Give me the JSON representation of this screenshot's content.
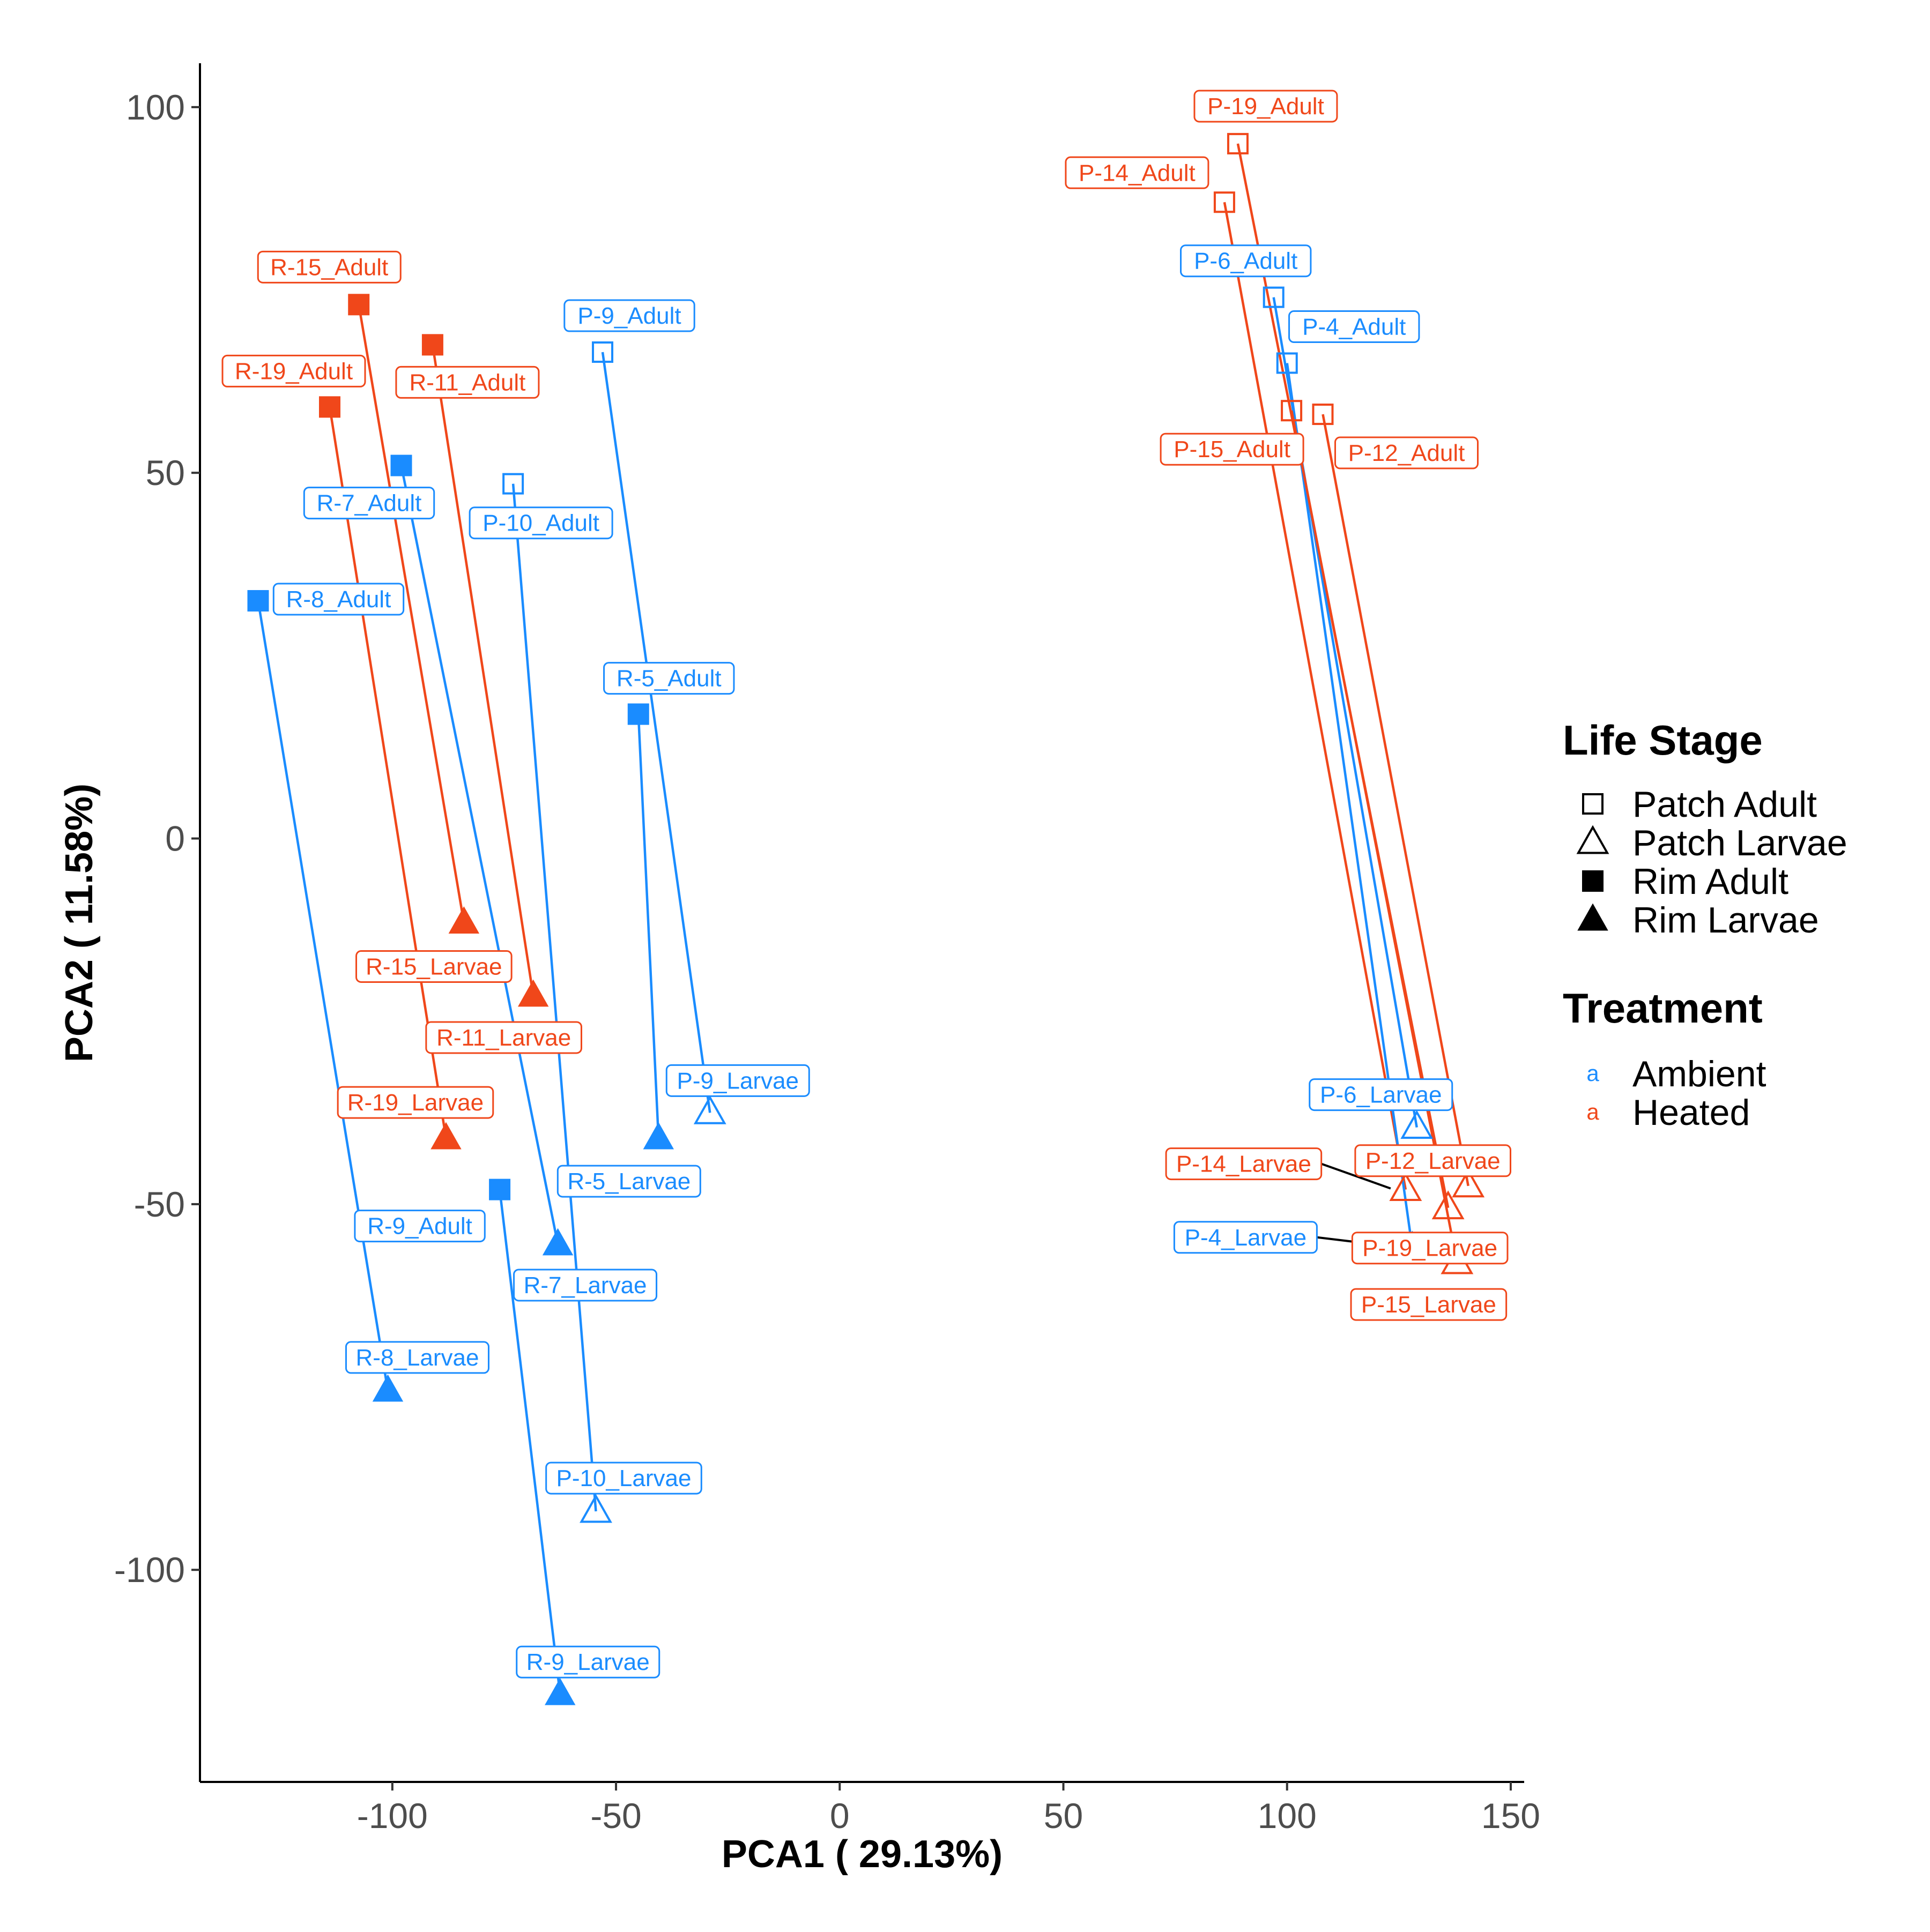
{
  "chart_data": {
    "type": "scatter",
    "xlabel": "PCA1 ( 29.13%)",
    "ylabel": "PCA2 ( 11.58%)",
    "xlim": [
      -143,
      153
    ],
    "ylim": [
      -129,
      106
    ],
    "x_ticks": [
      -100,
      -50,
      0,
      50,
      100,
      150
    ],
    "y_ticks": [
      100,
      50,
      0,
      -50,
      -100
    ],
    "x_tick_labels": [
      "-100",
      "-50",
      "0",
      "50",
      "100",
      "150"
    ],
    "y_tick_labels": [
      "100",
      "50",
      "0",
      "-50",
      "-100"
    ],
    "grid": false,
    "colors": {
      "Ambient": "#1a8cff",
      "Heated": "#f0471a",
      "ink": "#000000"
    },
    "legend": {
      "placement": "right",
      "life_stage_title": "Life Stage",
      "life_stage_items": [
        {
          "label": "Patch Adult",
          "shape": "square",
          "filled": false
        },
        {
          "label": "Patch Larvae",
          "shape": "triangle",
          "filled": false
        },
        {
          "label": "Rim Adult",
          "shape": "square",
          "filled": true
        },
        {
          "label": "Rim Larvae",
          "shape": "triangle",
          "filled": true
        }
      ],
      "treatment_title": "Treatment",
      "treatment_key_glyph": "a",
      "treatment_items": [
        {
          "label": "Ambient",
          "color": "#1a8cff"
        },
        {
          "label": "Heated",
          "color": "#f0471a"
        }
      ]
    },
    "points": [
      {
        "label": "R-15_Adult",
        "x": -107.5,
        "y": 73,
        "group": "Rim Adult",
        "treatment": "Heated"
      },
      {
        "label": "R-19_Adult",
        "x": -114,
        "y": 59,
        "group": "Rim Adult",
        "treatment": "Heated"
      },
      {
        "label": "R-11_Adult",
        "x": -91,
        "y": 67.5,
        "group": "Rim Adult",
        "treatment": "Heated"
      },
      {
        "label": "R-7_Adult",
        "x": -98,
        "y": 51,
        "group": "Rim Adult",
        "treatment": "Ambient"
      },
      {
        "label": "R-8_Adult",
        "x": -130,
        "y": 32.5,
        "group": "Rim Adult",
        "treatment": "Ambient"
      },
      {
        "label": "R-5_Adult",
        "x": -45,
        "y": 17,
        "group": "Rim Adult",
        "treatment": "Ambient"
      },
      {
        "label": "R-9_Adult",
        "x": -76,
        "y": -48,
        "group": "Rim Adult",
        "treatment": "Ambient"
      },
      {
        "label": "P-9_Adult",
        "x": -53,
        "y": 66.5,
        "group": "Patch Adult",
        "treatment": "Ambient"
      },
      {
        "label": "P-10_Adult",
        "x": -73,
        "y": 48.5,
        "group": "Patch Adult",
        "treatment": "Ambient"
      },
      {
        "label": "R-15_Larvae",
        "x": -84,
        "y": -11.5,
        "group": "Rim Larvae",
        "treatment": "Heated"
      },
      {
        "label": "R-11_Larvae",
        "x": -68.5,
        "y": -21.5,
        "group": "Rim Larvae",
        "treatment": "Heated"
      },
      {
        "label": "R-19_Larvae",
        "x": -88,
        "y": -41,
        "group": "Rim Larvae",
        "treatment": "Heated"
      },
      {
        "label": "R-5_Larvae",
        "x": -40.5,
        "y": -41,
        "group": "Rim Larvae",
        "treatment": "Ambient"
      },
      {
        "label": "R-7_Larvae",
        "x": -63,
        "y": -55.5,
        "group": "Rim Larvae",
        "treatment": "Ambient"
      },
      {
        "label": "R-8_Larvae",
        "x": -101,
        "y": -75.5,
        "group": "Rim Larvae",
        "treatment": "Ambient"
      },
      {
        "label": "R-9_Larvae",
        "x": -62.5,
        "y": -117,
        "group": "Rim Larvae",
        "treatment": "Ambient"
      },
      {
        "label": "P-9_Larvae",
        "x": -29,
        "y": -37.5,
        "group": "Patch Larvae",
        "treatment": "Ambient"
      },
      {
        "label": "P-10_Larvae",
        "x": -54.5,
        "y": -92,
        "group": "Patch Larvae",
        "treatment": "Ambient"
      },
      {
        "label": "P-19_Adult",
        "x": 89,
        "y": 95,
        "group": "Patch Adult",
        "treatment": "Heated"
      },
      {
        "label": "P-14_Adult",
        "x": 86,
        "y": 87,
        "group": "Patch Adult",
        "treatment": "Heated"
      },
      {
        "label": "P-6_Adult",
        "x": 97,
        "y": 74,
        "group": "Patch Adult",
        "treatment": "Ambient"
      },
      {
        "label": "P-4_Adult",
        "x": 100,
        "y": 65,
        "group": "Patch Adult",
        "treatment": "Ambient"
      },
      {
        "label": "P-15_Adult",
        "x": 101,
        "y": 58.5,
        "group": "Patch Adult",
        "treatment": "Heated"
      },
      {
        "label": "P-12_Adult",
        "x": 108,
        "y": 58,
        "group": "Patch Adult",
        "treatment": "Heated"
      },
      {
        "label": "P-6_Larvae",
        "x": 129,
        "y": -39.5,
        "group": "Patch Larvae",
        "treatment": "Ambient"
      },
      {
        "label": "P-14_Larvae",
        "x": 126.5,
        "y": -48,
        "group": "Patch Larvae",
        "treatment": "Heated"
      },
      {
        "label": "P-12_Larvae",
        "x": 140.5,
        "y": -47.5,
        "group": "Patch Larvae",
        "treatment": "Heated"
      },
      {
        "label": "P-4_Larvae",
        "x": 128,
        "y": -56,
        "group": "Patch Larvae",
        "treatment": "Ambient"
      },
      {
        "label": "P-19_Larvae",
        "x": 136,
        "y": -50.5,
        "group": "Patch Larvae",
        "treatment": "Heated"
      },
      {
        "label": "P-15_Larvae",
        "x": 138,
        "y": -58,
        "group": "Patch Larvae",
        "treatment": "Heated"
      }
    ],
    "segments": [
      {
        "from": "R-15_Adult",
        "to": "R-15_Larvae",
        "treatment": "Heated"
      },
      {
        "from": "R-19_Adult",
        "to": "R-19_Larvae",
        "treatment": "Heated"
      },
      {
        "from": "R-11_Adult",
        "to": "R-11_Larvae",
        "treatment": "Heated"
      },
      {
        "from": "R-7_Adult",
        "to": "R-7_Larvae",
        "treatment": "Ambient"
      },
      {
        "from": "R-8_Adult",
        "to": "R-8_Larvae",
        "treatment": "Ambient"
      },
      {
        "from": "R-5_Adult",
        "to": "R-5_Larvae",
        "treatment": "Ambient"
      },
      {
        "from": "R-9_Adult",
        "to": "R-9_Larvae",
        "treatment": "Ambient"
      },
      {
        "from": "P-9_Adult",
        "to": "P-9_Larvae",
        "treatment": "Ambient"
      },
      {
        "from": "P-10_Adult",
        "to": "P-10_Larvae",
        "treatment": "Ambient"
      },
      {
        "from": "P-19_Adult",
        "to": "P-19_Larvae",
        "treatment": "Heated"
      },
      {
        "from": "P-14_Adult",
        "to": "P-14_Larvae",
        "treatment": "Heated"
      },
      {
        "from": "P-6_Adult",
        "to": "P-6_Larvae",
        "treatment": "Ambient"
      },
      {
        "from": "P-4_Adult",
        "to": "P-4_Larvae",
        "treatment": "Ambient"
      },
      {
        "from": "P-15_Adult",
        "to": "P-15_Larvae",
        "treatment": "Heated"
      },
      {
        "from": "P-12_Adult",
        "to": "P-12_Larvae",
        "treatment": "Heated"
      }
    ]
  }
}
